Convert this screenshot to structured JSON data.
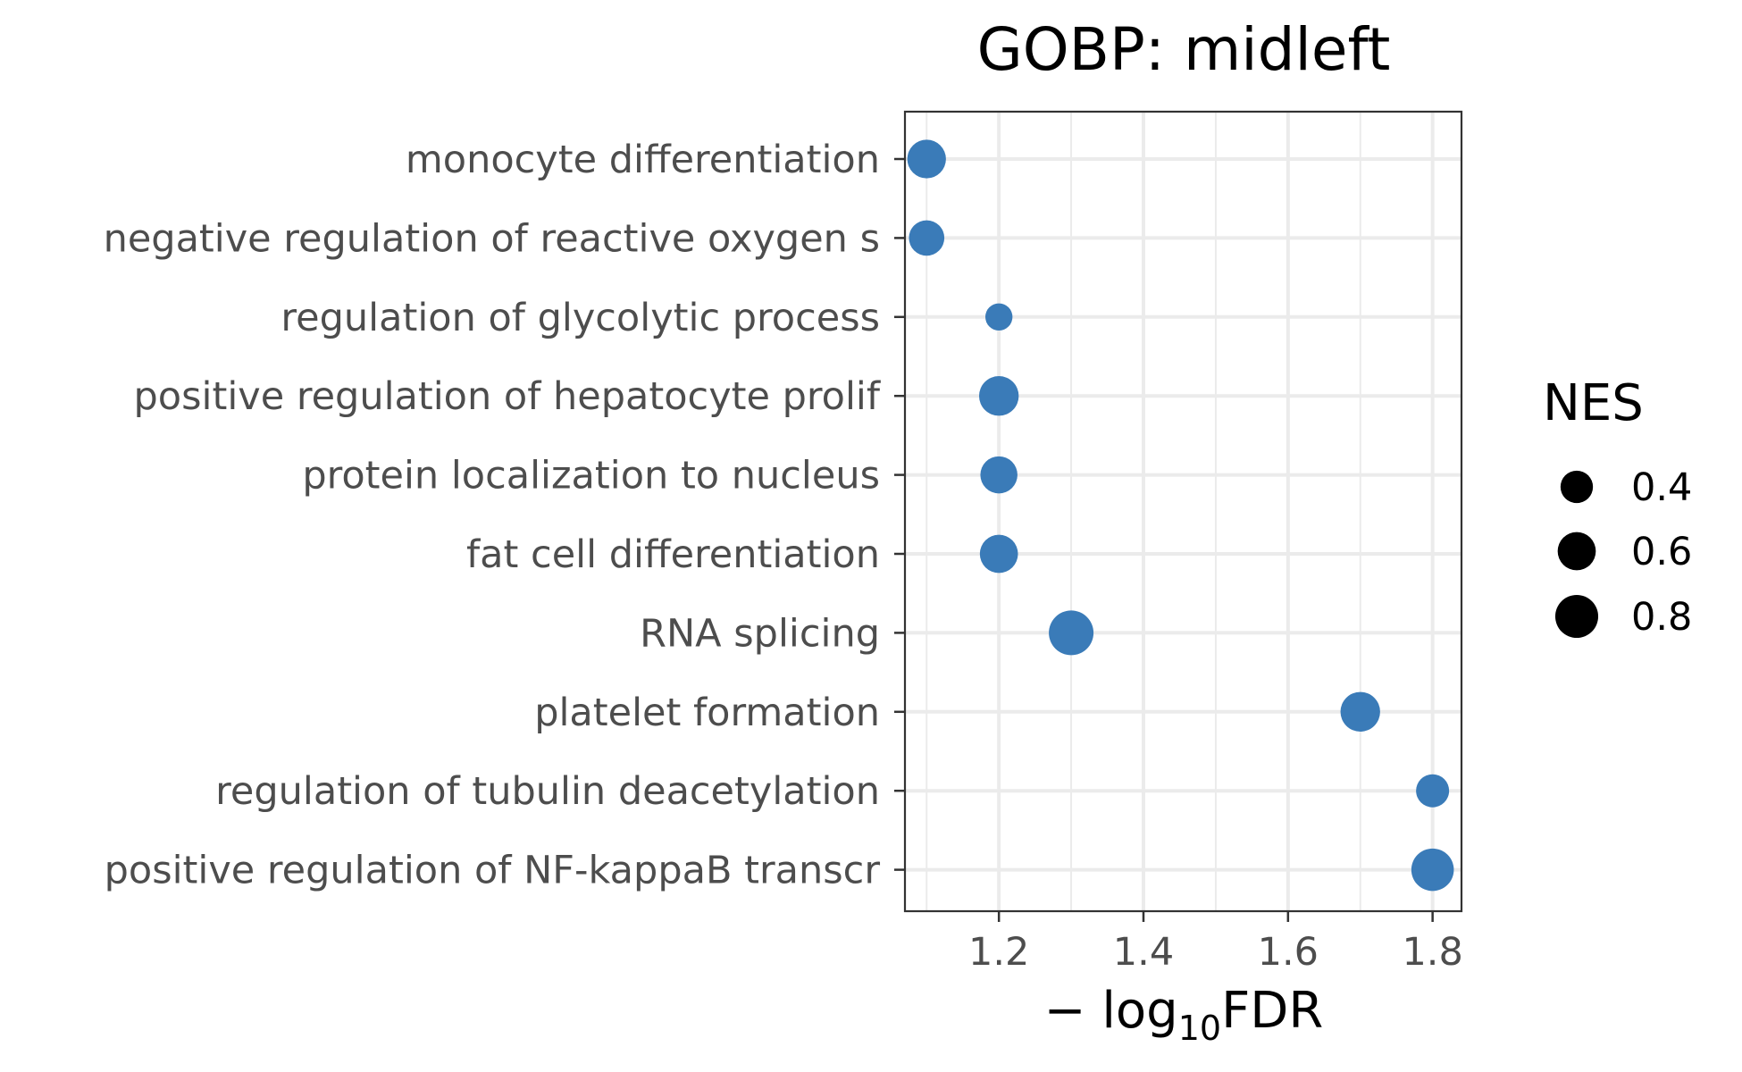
{
  "chart_data": {
    "type": "scatter",
    "title": "GOBP: midleft",
    "xlabel": {
      "prefix": "− log",
      "sub": "10",
      "suffix": "FDR"
    },
    "ylabel": "",
    "xlim": [
      1.07,
      1.84
    ],
    "xticks": [
      1.2,
      1.4,
      1.6,
      1.8
    ],
    "xtick_labels": [
      "1.2",
      "1.4",
      "1.6",
      "1.8"
    ],
    "grid": true,
    "point_color": "#3a7bb8",
    "categories": [
      "monocyte differentiation",
      "negative regulation of reactive oxygen s",
      "regulation of glycolytic process",
      "positive regulation of hepatocyte prolif",
      "protein localization to nucleus",
      "fat cell differentiation",
      "RNA splicing",
      "platelet formation",
      "regulation of tubulin deacetylation",
      "positive regulation of NF-kappaB transcr"
    ],
    "x": [
      1.1,
      1.1,
      1.2,
      1.2,
      1.2,
      1.2,
      1.3,
      1.7,
      1.8,
      1.8
    ],
    "size_values": [
      0.62,
      0.5,
      0.25,
      0.66,
      0.56,
      0.6,
      0.88,
      0.66,
      0.42,
      0.78
    ],
    "size_legend": {
      "title": "NES",
      "placement": "right",
      "values": [
        0.4,
        0.6,
        0.8
      ],
      "labels": [
        "0.4",
        "0.6",
        "0.8"
      ]
    }
  }
}
